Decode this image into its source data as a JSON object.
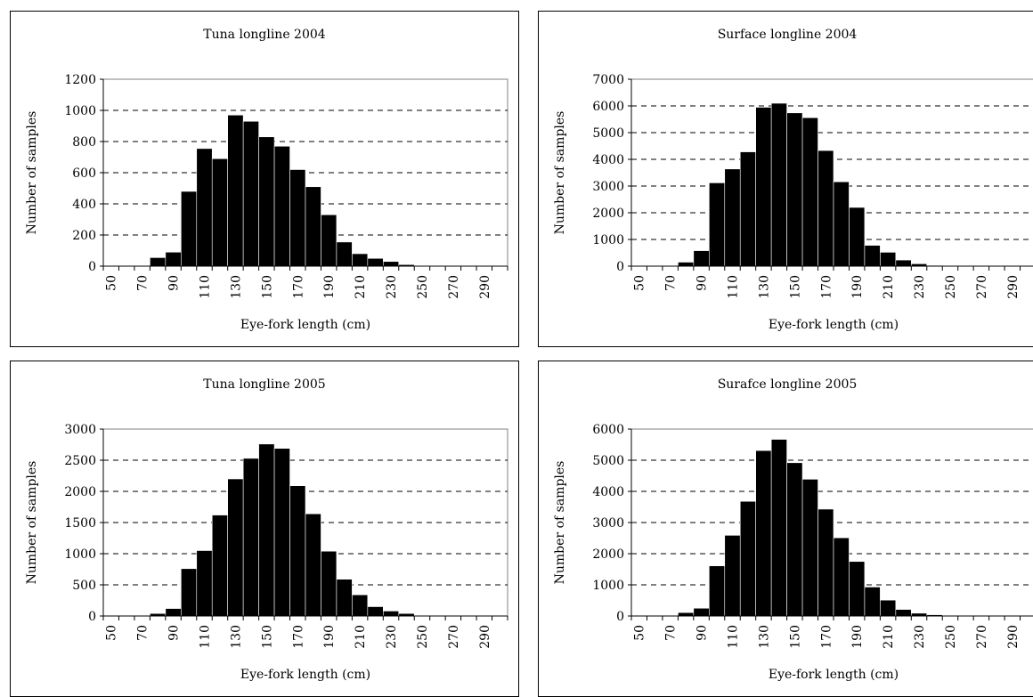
{
  "chart_data": [
    {
      "type": "bar",
      "title": "Tuna longline 2004",
      "xlabel": "Eye-fork length (cm)",
      "ylabel": "Number of samples",
      "ylim": [
        0,
        1200
      ],
      "yticks": [
        0,
        200,
        400,
        600,
        800,
        1000,
        1200
      ],
      "grid": "horizontal dashed",
      "xticklabels": [
        "50",
        "70",
        "90",
        "110",
        "130",
        "150",
        "170",
        "190",
        "210",
        "230",
        "250",
        "270",
        "290"
      ],
      "categories": [
        "50",
        "60",
        "70",
        "80",
        "90",
        "100",
        "110",
        "120",
        "130",
        "140",
        "150",
        "160",
        "170",
        "180",
        "190",
        "200",
        "210",
        "220",
        "230",
        "240",
        "250",
        "260",
        "270",
        "280",
        "290",
        "300"
      ],
      "values": [
        0,
        0,
        0,
        55,
        90,
        480,
        755,
        690,
        970,
        930,
        830,
        770,
        620,
        510,
        330,
        155,
        80,
        50,
        30,
        10,
        0,
        0,
        0,
        0,
        0,
        0
      ]
    },
    {
      "type": "bar",
      "title": "Surface longline 2004",
      "xlabel": "Eye-fork length (cm)",
      "ylabel": "Number of samples",
      "ylim": [
        0,
        7000
      ],
      "yticks": [
        0,
        1000,
        2000,
        3000,
        4000,
        5000,
        6000,
        7000
      ],
      "grid": "horizontal dashed",
      "xticklabels": [
        "50",
        "70",
        "90",
        "110",
        "130",
        "150",
        "170",
        "190",
        "210",
        "230",
        "250",
        "270",
        "290"
      ],
      "categories": [
        "50",
        "60",
        "70",
        "80",
        "90",
        "100",
        "110",
        "120",
        "130",
        "140",
        "150",
        "160",
        "170",
        "180",
        "190",
        "200",
        "210",
        "220",
        "230",
        "240",
        "250",
        "260",
        "270",
        "280",
        "290",
        "300"
      ],
      "values": [
        0,
        0,
        0,
        150,
        580,
        3120,
        3640,
        4280,
        5950,
        6100,
        5740,
        5560,
        4330,
        3160,
        2200,
        780,
        520,
        230,
        90,
        30,
        0,
        0,
        0,
        0,
        0,
        0
      ]
    },
    {
      "type": "bar",
      "title": "Tuna longline 2005",
      "xlabel": "Eye-fork length (cm)",
      "ylabel": "Number of samples",
      "ylim": [
        0,
        3000
      ],
      "yticks": [
        0,
        500,
        1000,
        1500,
        2000,
        2500,
        3000
      ],
      "grid": "horizontal dashed",
      "xticklabels": [
        "50",
        "70",
        "90",
        "110",
        "130",
        "150",
        "170",
        "190",
        "210",
        "230",
        "250",
        "270",
        "290"
      ],
      "categories": [
        "50",
        "60",
        "70",
        "80",
        "90",
        "100",
        "110",
        "120",
        "130",
        "140",
        "150",
        "160",
        "170",
        "180",
        "190",
        "200",
        "210",
        "220",
        "230",
        "240",
        "250",
        "260",
        "270",
        "280",
        "290",
        "300"
      ],
      "values": [
        0,
        0,
        0,
        40,
        120,
        760,
        1050,
        1620,
        2200,
        2530,
        2760,
        2690,
        2090,
        1640,
        1040,
        590,
        340,
        150,
        80,
        40,
        0,
        0,
        0,
        0,
        0,
        0
      ]
    },
    {
      "type": "bar",
      "title": "Surafce longline 2005",
      "xlabel": "Eye-fork length (cm)",
      "ylabel": "Number of samples",
      "ylim": [
        0,
        6000
      ],
      "yticks": [
        0,
        1000,
        2000,
        3000,
        4000,
        5000,
        6000
      ],
      "grid": "horizontal dashed",
      "xticklabels": [
        "50",
        "70",
        "90",
        "110",
        "130",
        "150",
        "170",
        "190",
        "210",
        "230",
        "250",
        "270",
        "290"
      ],
      "categories": [
        "50",
        "60",
        "70",
        "80",
        "90",
        "100",
        "110",
        "120",
        "130",
        "140",
        "150",
        "160",
        "170",
        "180",
        "190",
        "200",
        "210",
        "220",
        "230",
        "240",
        "250",
        "260",
        "270",
        "280",
        "290",
        "300"
      ],
      "values": [
        0,
        0,
        0,
        110,
        250,
        1610,
        2590,
        3680,
        5310,
        5670,
        4920,
        4390,
        3430,
        2510,
        1750,
        930,
        510,
        210,
        90,
        40,
        0,
        0,
        0,
        0,
        0,
        0
      ]
    }
  ]
}
